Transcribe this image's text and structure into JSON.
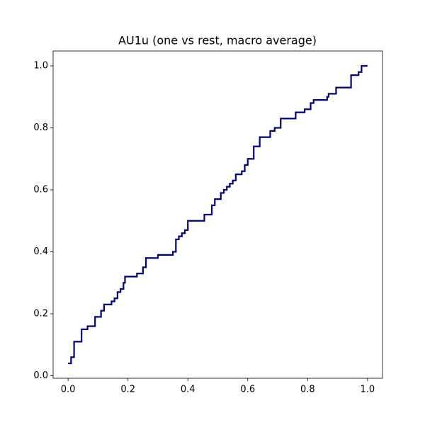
{
  "chart_data": {
    "type": "line",
    "title": "AU1u (one vs rest, macro average)",
    "series": [
      {
        "color": "#000080",
        "x": [
          0,
          0.01,
          0.01,
          0.02,
          0.02,
          0.045,
          0.045,
          0.065,
          0.065,
          0.09,
          0.09,
          0.11,
          0.11,
          0.12,
          0.12,
          0.145,
          0.145,
          0.155,
          0.155,
          0.165,
          0.165,
          0.175,
          0.175,
          0.185,
          0.185,
          0.19,
          0.19,
          0.23,
          0.23,
          0.25,
          0.25,
          0.26,
          0.26,
          0.3,
          0.3,
          0.35,
          0.35,
          0.36,
          0.36,
          0.37,
          0.37,
          0.38,
          0.38,
          0.39,
          0.39,
          0.4,
          0.4,
          0.455,
          0.455,
          0.48,
          0.48,
          0.49,
          0.49,
          0.51,
          0.51,
          0.52,
          0.52,
          0.53,
          0.53,
          0.54,
          0.54,
          0.55,
          0.55,
          0.56,
          0.56,
          0.58,
          0.58,
          0.59,
          0.59,
          0.6,
          0.6,
          0.62,
          0.62,
          0.64,
          0.64,
          0.675,
          0.675,
          0.69,
          0.69,
          0.71,
          0.71,
          0.76,
          0.76,
          0.79,
          0.79,
          0.81,
          0.81,
          0.82,
          0.82,
          0.865,
          0.865,
          0.87,
          0.87,
          0.895,
          0.895,
          0.945,
          0.945,
          0.97,
          0.97,
          0.98,
          0.98,
          1.0
        ],
        "values": [
          0.04,
          0.04,
          0.06,
          0.06,
          0.11,
          0.11,
          0.15,
          0.15,
          0.16,
          0.16,
          0.19,
          0.19,
          0.21,
          0.21,
          0.23,
          0.23,
          0.24,
          0.24,
          0.25,
          0.25,
          0.27,
          0.27,
          0.28,
          0.28,
          0.3,
          0.3,
          0.32,
          0.32,
          0.33,
          0.33,
          0.35,
          0.35,
          0.38,
          0.38,
          0.39,
          0.39,
          0.4,
          0.4,
          0.44,
          0.44,
          0.45,
          0.45,
          0.46,
          0.46,
          0.47,
          0.47,
          0.5,
          0.5,
          0.52,
          0.52,
          0.55,
          0.55,
          0.57,
          0.57,
          0.59,
          0.59,
          0.6,
          0.6,
          0.61,
          0.61,
          0.62,
          0.62,
          0.63,
          0.63,
          0.65,
          0.65,
          0.66,
          0.66,
          0.68,
          0.68,
          0.7,
          0.7,
          0.74,
          0.74,
          0.77,
          0.77,
          0.79,
          0.79,
          0.8,
          0.8,
          0.83,
          0.83,
          0.85,
          0.85,
          0.86,
          0.86,
          0.88,
          0.88,
          0.89,
          0.89,
          0.9,
          0.9,
          0.91,
          0.91,
          0.93,
          0.93,
          0.97,
          0.97,
          0.98,
          0.98,
          1.0,
          1.0
        ]
      }
    ],
    "xlim": [
      -0.05,
      1.05
    ],
    "ylim": [
      -0.008,
      1.048
    ],
    "xticks": [
      {
        "value": 0,
        "label": "0.0"
      },
      0.2,
      0.4,
      0.6,
      0.8,
      {
        "value": 1,
        "label": "1.0"
      }
    ],
    "yticks": [
      {
        "value": 0,
        "label": "0.0"
      },
      0.2,
      0.4,
      0.6,
      0.8,
      {
        "value": 1,
        "label": "1.0"
      }
    ],
    "grid": false
  }
}
